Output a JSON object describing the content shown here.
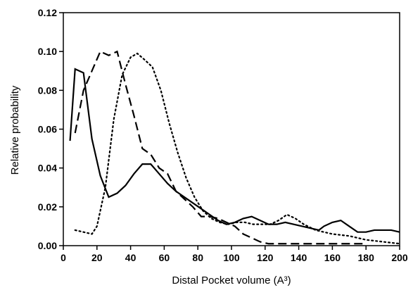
{
  "chart_data": {
    "type": "line",
    "x_label": "Distal Pocket volume (A³)",
    "y_label": "Relative probability",
    "xlim": [
      0,
      200
    ],
    "xticks": [
      0,
      20,
      40,
      60,
      80,
      100,
      120,
      140,
      160,
      180,
      200
    ],
    "ylim": [
      0,
      0.12
    ],
    "yticks": [
      {
        "value": 0,
        "label": "0.00"
      },
      0.02,
      0.04,
      0.06,
      0.08,
      {
        "value": 0.1,
        "label": "0.10"
      },
      0.12
    ],
    "grid": false,
    "series": [
      {
        "color": "#000000",
        "dash": "solid",
        "x": [
          4,
          7,
          12,
          17,
          22,
          27,
          32,
          37,
          42,
          47,
          52,
          57,
          62,
          67,
          72,
          77,
          82,
          87,
          92,
          97,
          102,
          107,
          112,
          117,
          122,
          127,
          132,
          137,
          142,
          147,
          152,
          155,
          160,
          165,
          170,
          175,
          180,
          185,
          190,
          195,
          200
        ],
        "values": [
          0.054,
          0.091,
          0.089,
          0.055,
          0.036,
          0.025,
          0.027,
          0.031,
          0.037,
          0.042,
          0.042,
          0.037,
          0.032,
          0.028,
          0.025,
          0.022,
          0.019,
          0.016,
          0.013,
          0.011,
          0.012,
          0.014,
          0.015,
          0.013,
          0.011,
          0.011,
          0.012,
          0.011,
          0.01,
          0.009,
          0.008,
          0.01,
          0.012,
          0.013,
          0.01,
          0.007,
          0.007,
          0.008,
          0.008,
          0.008,
          0.007
        ]
      },
      {
        "color": "#000000",
        "dash": "dashed",
        "x": [
          7,
          12,
          17,
          22,
          27,
          32,
          37,
          42,
          47,
          52,
          57,
          62,
          67,
          72,
          77,
          82,
          87,
          92,
          97,
          102,
          107,
          112,
          117,
          122,
          127,
          132,
          137,
          142,
          152,
          162,
          172,
          180
        ],
        "values": [
          0.058,
          0.08,
          0.09,
          0.1,
          0.098,
          0.1,
          0.083,
          0.067,
          0.05,
          0.047,
          0.04,
          0.037,
          0.028,
          0.024,
          0.02,
          0.015,
          0.015,
          0.014,
          0.012,
          0.01,
          0.006,
          0.004,
          0.002,
          0.001,
          0.001,
          0.001,
          0.001,
          0.001,
          0.001,
          0.001,
          0.001,
          0.001
        ]
      },
      {
        "color": "#000000",
        "dash": "dotted",
        "x": [
          7,
          12,
          17,
          20,
          25,
          30,
          35,
          40,
          44,
          48,
          53,
          58,
          63,
          68,
          73,
          78,
          83,
          88,
          93,
          98,
          103,
          108,
          113,
          118,
          123,
          128,
          133,
          138,
          143,
          150,
          160,
          170,
          180,
          190,
          200
        ],
        "values": [
          0.008,
          0.007,
          0.006,
          0.01,
          0.03,
          0.065,
          0.088,
          0.097,
          0.099,
          0.096,
          0.092,
          0.08,
          0.063,
          0.048,
          0.035,
          0.025,
          0.018,
          0.014,
          0.012,
          0.011,
          0.012,
          0.012,
          0.011,
          0.011,
          0.011,
          0.013,
          0.016,
          0.014,
          0.011,
          0.008,
          0.006,
          0.005,
          0.003,
          0.002,
          0.001
        ]
      }
    ]
  }
}
